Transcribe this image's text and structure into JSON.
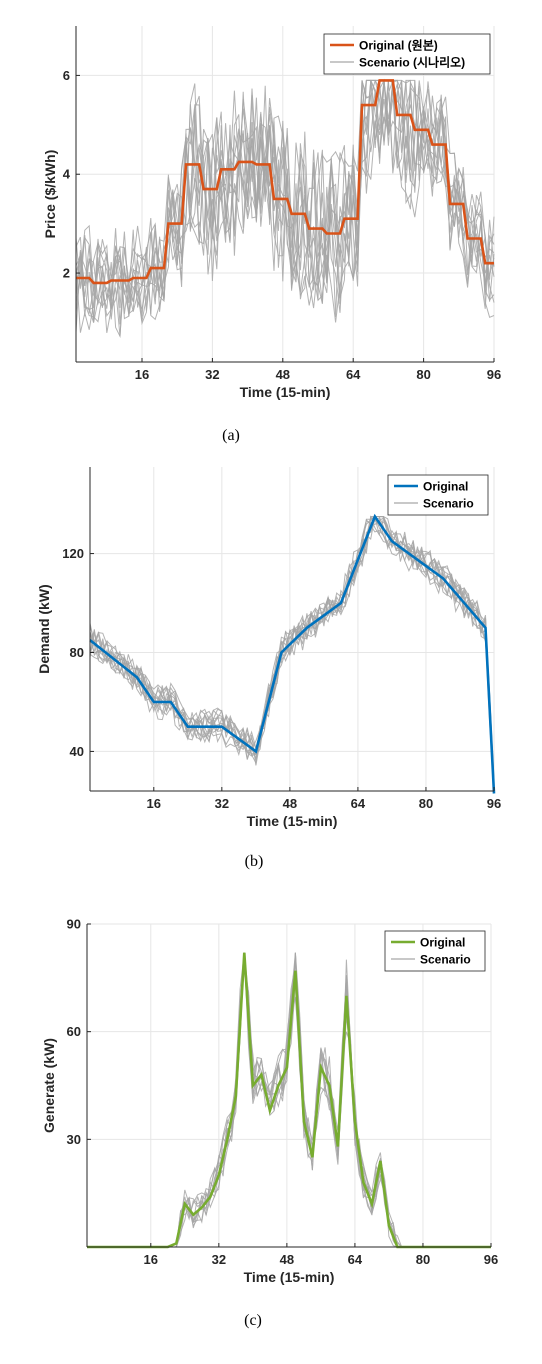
{
  "chart_data": [
    {
      "type": "line",
      "caption": "(a)",
      "xlabel": "Time (15-min)",
      "ylabel": "Price ($/kWh)",
      "xlim": [
        1,
        96
      ],
      "ylim": [
        0.2,
        7
      ],
      "xticks": [
        16,
        32,
        48,
        64,
        80,
        96
      ],
      "yticks": [
        2,
        4,
        6
      ],
      "grid": true,
      "legend_position": "top-right",
      "series": [
        {
          "name": "Original (원본)",
          "color": "#d95319",
          "x": [
            1,
            4,
            5,
            8,
            9,
            13,
            14,
            17,
            18,
            21,
            22,
            25,
            26,
            29,
            30,
            33,
            34,
            37,
            38,
            41,
            42,
            45,
            46,
            49,
            50,
            53,
            54,
            57,
            58,
            61,
            62,
            65,
            66,
            69,
            70,
            73,
            74,
            77,
            78,
            81,
            82,
            85,
            86,
            89,
            90,
            93,
            94,
            96
          ],
          "y": [
            1.9,
            1.9,
            1.8,
            1.8,
            1.85,
            1.85,
            1.9,
            1.9,
            2.1,
            2.1,
            3.0,
            3.0,
            4.2,
            4.2,
            3.7,
            3.7,
            4.1,
            4.1,
            4.25,
            4.25,
            4.2,
            4.2,
            3.5,
            3.5,
            3.2,
            3.2,
            2.9,
            2.9,
            2.8,
            2.8,
            3.1,
            3.1,
            5.4,
            5.4,
            5.9,
            5.9,
            5.2,
            5.2,
            4.9,
            4.9,
            4.6,
            4.6,
            3.4,
            3.4,
            2.7,
            2.7,
            2.2,
            2.2
          ]
        },
        {
          "name": "Scenario (시나리오)",
          "color": "#a6a6a6",
          "count": 12,
          "clip": [
            0.5,
            5.9
          ]
        }
      ]
    },
    {
      "type": "line",
      "caption": "(b)",
      "xlabel": "Time (15-min)",
      "ylabel": "Demand (kW)",
      "xlim": [
        1,
        96
      ],
      "ylim": [
        24,
        155
      ],
      "xticks": [
        16,
        32,
        48,
        64,
        80,
        96
      ],
      "yticks": [
        40,
        80,
        120
      ],
      "grid": true,
      "legend_position": "top-right",
      "series": [
        {
          "name": "Original",
          "color": "#0072bd",
          "x": [
            1,
            12,
            16,
            20,
            24,
            32,
            40,
            46,
            52,
            60,
            68,
            72,
            84,
            94,
            96
          ],
          "y": [
            85,
            70,
            60,
            60,
            50,
            50,
            40,
            80,
            90,
            100,
            135,
            125,
            110,
            90,
            23
          ]
        },
        {
          "name": "Scenario",
          "color": "#a6a6a6",
          "count": 12,
          "clip": [
            25,
            135
          ]
        }
      ]
    },
    {
      "type": "line",
      "caption": "(c)",
      "xlabel": "Time (15-min)",
      "ylabel": "Generate (kW)",
      "xlim": [
        1,
        96
      ],
      "ylim": [
        0,
        90
      ],
      "xticks": [
        16,
        32,
        48,
        64,
        80,
        96
      ],
      "yticks": [
        30,
        60,
        90
      ],
      "grid": true,
      "legend_position": "top-right",
      "series": [
        {
          "name": "Original",
          "color": "#77ac30",
          "x": [
            1,
            20,
            22,
            24,
            26,
            28,
            30,
            32,
            34,
            36,
            38,
            40,
            42,
            44,
            46,
            48,
            50,
            52,
            54,
            56,
            58,
            60,
            62,
            64,
            66,
            68,
            70,
            72,
            74,
            76,
            78,
            96
          ],
          "y": [
            0,
            0,
            1,
            12,
            9,
            11,
            14,
            20,
            30,
            42,
            82,
            45,
            48,
            38,
            45,
            50,
            77,
            35,
            25,
            50,
            45,
            28,
            70,
            35,
            18,
            12,
            24,
            6,
            0,
            0,
            0,
            0
          ]
        },
        {
          "name": "Scenario",
          "color": "#a6a6a6",
          "count": 10,
          "clip": [
            0,
            82
          ]
        }
      ]
    }
  ]
}
